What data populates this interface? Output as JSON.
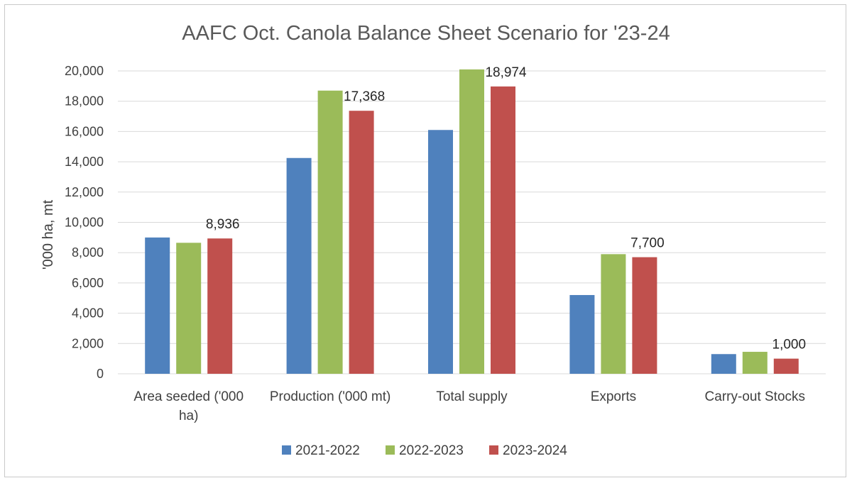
{
  "chart_data": {
    "type": "bar",
    "title": "AAFC Oct. Canola Balance Sheet Scenario for '23-24",
    "xlabel": "",
    "ylabel": "'000 ha, mt",
    "ylim": [
      0,
      20000
    ],
    "yticks": [
      0,
      2000,
      4000,
      6000,
      8000,
      10000,
      12000,
      14000,
      16000,
      18000,
      20000
    ],
    "ytick_labels": [
      "0",
      "2,000",
      "4,000",
      "6,000",
      "8,000",
      "10,000",
      "12,000",
      "14,000",
      "16,000",
      "18,000",
      "20,000"
    ],
    "categories": [
      [
        "Area seeded ('000",
        "ha)"
      ],
      [
        "Production ('000 mt)"
      ],
      [
        "Total supply"
      ],
      [
        "Exports"
      ],
      [
        "Carry-out Stocks"
      ]
    ],
    "series": [
      {
        "name": "2021-2022",
        "color": "#4f81bd",
        "values": [
          9000,
          14250,
          16100,
          5200,
          1300
        ]
      },
      {
        "name": "2022-2023",
        "color": "#9bbb59",
        "values": [
          8650,
          18700,
          20100,
          7900,
          1450
        ]
      },
      {
        "name": "2023-2024",
        "color": "#c0504d",
        "values": [
          8936,
          17368,
          18974,
          7700,
          1000
        ]
      }
    ],
    "data_labels": [
      {
        "series": 2,
        "category": 0,
        "text": "8,936"
      },
      {
        "series": 2,
        "category": 1,
        "text": "17,368"
      },
      {
        "series": 2,
        "category": 2,
        "text": "18,974"
      },
      {
        "series": 2,
        "category": 3,
        "text": "7,700"
      },
      {
        "series": 2,
        "category": 4,
        "text": "1,000"
      }
    ],
    "legend_position": "bottom",
    "grid": true
  }
}
